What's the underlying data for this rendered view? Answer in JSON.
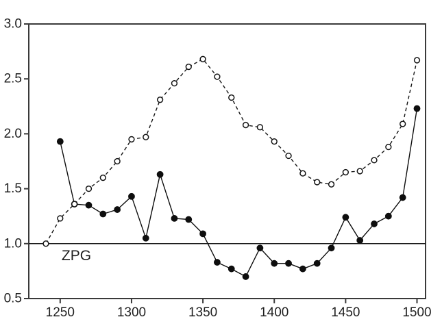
{
  "window": {
    "background_color": "#ffffff"
  },
  "chart_data": {
    "type": "line",
    "title": "",
    "xlabel": "",
    "ylabel": "",
    "xlim": [
      1228,
      1506
    ],
    "ylim": [
      0.5,
      3.0
    ],
    "grid": false,
    "legend": "none",
    "frame_color": "#3a3a3a",
    "line_color": "#141414",
    "text_color": "#222222",
    "x_ticks": [
      {
        "value": 1250,
        "label": "1250"
      },
      {
        "value": 1300,
        "label": "1300"
      },
      {
        "value": 1350,
        "label": "1350"
      },
      {
        "value": 1400,
        "label": "1400"
      },
      {
        "value": 1450,
        "label": "1450"
      },
      {
        "value": 1500,
        "label": "1500"
      }
    ],
    "y_ticks": [
      {
        "value": 0.5,
        "label": "0.5"
      },
      {
        "value": 1.0,
        "label": "1.0"
      },
      {
        "value": 1.5,
        "label": "1.5"
      },
      {
        "value": 2.0,
        "label": "2.0"
      },
      {
        "value": 2.5,
        "label": "2.5"
      },
      {
        "value": 3.0,
        "label": "3.0"
      }
    ],
    "reference_line": {
      "y": 1.0,
      "label": "ZPG",
      "label_x": 1251,
      "label_y": 0.85
    },
    "series": [
      {
        "name": "open-circle-dashed-series",
        "marker": "open-circle",
        "line_style": "dashed",
        "color": "#141414",
        "x": [
          1240,
          1250,
          1260,
          1270,
          1280,
          1290,
          1300,
          1310,
          1320,
          1330,
          1340,
          1350,
          1360,
          1370,
          1380,
          1390,
          1400,
          1410,
          1420,
          1430,
          1440,
          1450,
          1460,
          1470,
          1480,
          1490,
          1500
        ],
        "values": [
          1.0,
          1.23,
          1.36,
          1.5,
          1.6,
          1.75,
          1.95,
          1.97,
          2.31,
          2.46,
          2.61,
          2.68,
          2.52,
          2.33,
          2.08,
          2.06,
          1.93,
          1.8,
          1.64,
          1.56,
          1.54,
          1.65,
          1.66,
          1.76,
          1.88,
          2.09,
          2.67
        ]
      },
      {
        "name": "filled-circle-solid-series",
        "marker": "filled-circle",
        "line_style": "solid",
        "color": "#0e0e0e",
        "x": [
          1250,
          1260,
          1270,
          1280,
          1290,
          1300,
          1310,
          1320,
          1330,
          1340,
          1350,
          1360,
          1370,
          1380,
          1390,
          1400,
          1410,
          1420,
          1430,
          1440,
          1450,
          1460,
          1470,
          1480,
          1490,
          1500
        ],
        "values": [
          1.93,
          1.36,
          1.35,
          1.27,
          1.31,
          1.43,
          1.05,
          1.63,
          1.23,
          1.22,
          1.09,
          0.83,
          0.77,
          0.7,
          0.96,
          0.82,
          0.82,
          0.77,
          0.82,
          0.96,
          1.24,
          1.03,
          1.18,
          1.25,
          1.42,
          2.23
        ]
      }
    ]
  }
}
